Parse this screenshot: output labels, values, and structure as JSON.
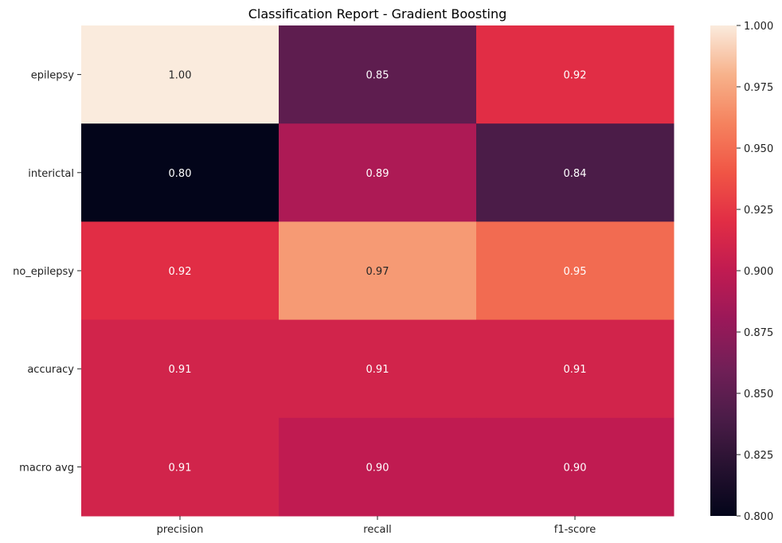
{
  "chart_data": {
    "type": "heatmap",
    "title": "Classification Report - Gradient Boosting",
    "xlabel": "",
    "ylabel": "",
    "columns": [
      "precision",
      "recall",
      "f1-score"
    ],
    "rows": [
      "epilepsy",
      "interictal",
      "no_epilepsy",
      "accuracy",
      "macro avg"
    ],
    "values": [
      [
        1.0,
        0.85,
        0.92
      ],
      [
        0.8,
        0.89,
        0.84
      ],
      [
        0.92,
        0.97,
        0.95
      ],
      [
        0.91,
        0.91,
        0.91
      ],
      [
        0.91,
        0.9,
        0.9
      ]
    ],
    "cell_labels": [
      [
        "1.00",
        "0.85",
        "0.92"
      ],
      [
        "0.80",
        "0.89",
        "0.84"
      ],
      [
        "0.92",
        "0.97",
        "0.95"
      ],
      [
        "0.91",
        "0.91",
        "0.91"
      ],
      [
        "0.91",
        "0.90",
        "0.90"
      ]
    ],
    "colormap": "rocket",
    "vmin": 0.8,
    "vmax": 1.0,
    "colorbar_ticks": [
      0.8,
      0.825,
      0.85,
      0.875,
      0.9,
      0.925,
      0.95,
      0.975,
      1.0
    ],
    "colorbar_tick_labels": [
      "0.800",
      "0.825",
      "0.850",
      "0.875",
      "0.900",
      "0.925",
      "0.950",
      "0.975",
      "1.000"
    ],
    "grid": false,
    "colorbar_placement": "right"
  }
}
